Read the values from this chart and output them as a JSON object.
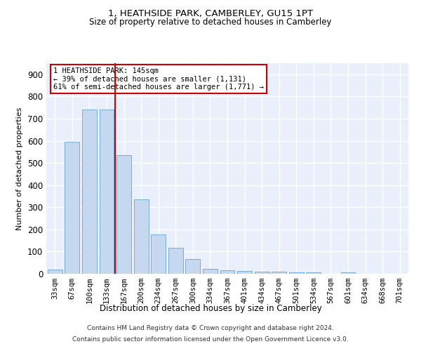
{
  "title": "1, HEATHSIDE PARK, CAMBERLEY, GU15 1PT",
  "subtitle": "Size of property relative to detached houses in Camberley",
  "xlabel": "Distribution of detached houses by size in Camberley",
  "ylabel": "Number of detached properties",
  "categories": [
    "33sqm",
    "67sqm",
    "100sqm",
    "133sqm",
    "167sqm",
    "200sqm",
    "234sqm",
    "267sqm",
    "300sqm",
    "334sqm",
    "367sqm",
    "401sqm",
    "434sqm",
    "467sqm",
    "501sqm",
    "534sqm",
    "567sqm",
    "601sqm",
    "634sqm",
    "668sqm",
    "701sqm"
  ],
  "values": [
    20,
    595,
    740,
    740,
    535,
    335,
    178,
    118,
    68,
    22,
    17,
    14,
    9,
    8,
    6,
    6,
    0,
    5,
    0,
    0,
    0
  ],
  "bar_color": "#c5d8ef",
  "bar_edge_color": "#7aadd4",
  "vline_color": "#cc0000",
  "annotation_text": "1 HEATHSIDE PARK: 145sqm\n← 39% of detached houses are smaller (1,131)\n61% of semi-detached houses are larger (1,771) →",
  "annotation_box_color": "#ffffff",
  "annotation_box_edge": "#cc0000",
  "ylim": [
    0,
    950
  ],
  "yticks": [
    0,
    100,
    200,
    300,
    400,
    500,
    600,
    700,
    800,
    900
  ],
  "bg_color": "#eaf0fb",
  "grid_color": "#ffffff",
  "footer1": "Contains HM Land Registry data © Crown copyright and database right 2024.",
  "footer2": "Contains public sector information licensed under the Open Government Licence v3.0."
}
